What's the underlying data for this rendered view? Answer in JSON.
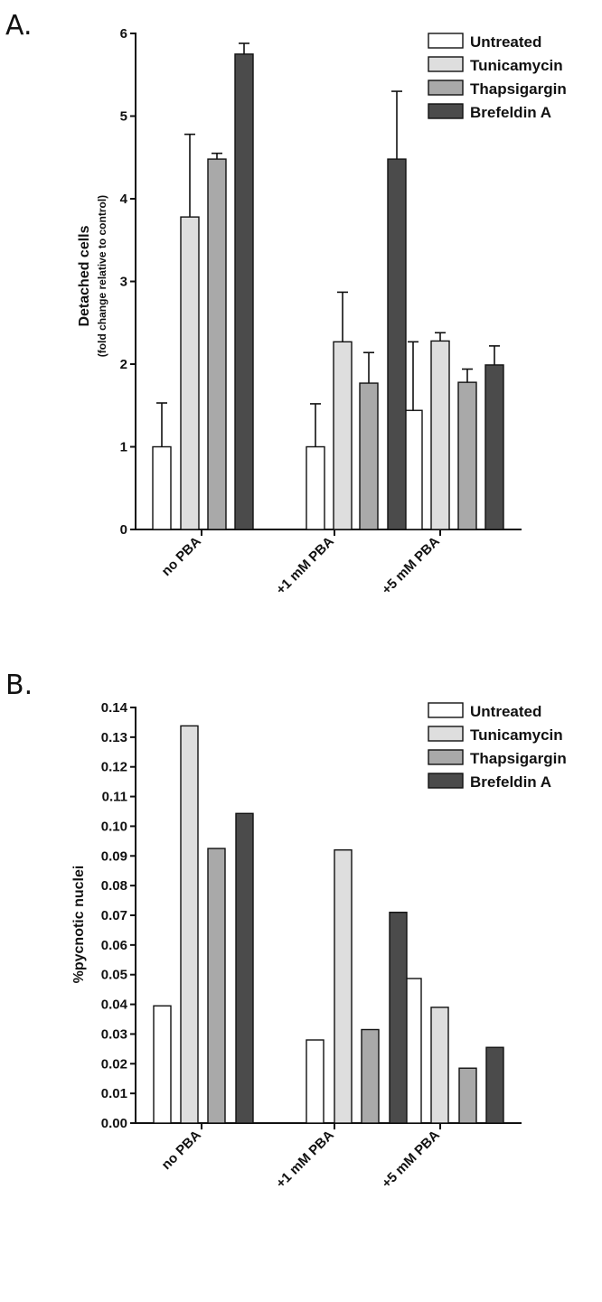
{
  "colors": {
    "Untreated": "#ffffff",
    "Tunicamycin": "#dedede",
    "Thapsigargin": "#a9a9a9",
    "Brefeldin A": "#4b4b4b",
    "axis": "#111111"
  },
  "chart_data": [
    {
      "type": "bar",
      "panel_label": "A.",
      "title": "",
      "categories": [
        "no PBA",
        "+1 mM PBA",
        "+5 mM PBA"
      ],
      "ylabel": "Detached cells",
      "ylabel_sub": "(fold change relative to control)",
      "ylim": [
        0,
        6
      ],
      "yticks": [
        "0",
        "1",
        "2",
        "3",
        "4",
        "5",
        "6"
      ],
      "legend_position": "top-right",
      "error_bars": true,
      "series": [
        {
          "name": "Untreated",
          "values": [
            1.0,
            1.0,
            1.44
          ],
          "errors": [
            0.53,
            0.52,
            0.83
          ]
        },
        {
          "name": "Tunicamycin",
          "values": [
            3.78,
            2.27,
            2.28
          ],
          "errors": [
            1.0,
            0.6,
            0.1
          ]
        },
        {
          "name": "Thapsigargin",
          "values": [
            4.48,
            1.77,
            1.78
          ],
          "errors": [
            0.07,
            0.37,
            0.16
          ]
        },
        {
          "name": "Brefeldin A",
          "values": [
            5.75,
            4.48,
            1.99
          ],
          "errors": [
            0.13,
            0.82,
            0.23
          ]
        }
      ]
    },
    {
      "type": "bar",
      "panel_label": "B.",
      "title": "",
      "categories": [
        "no PBA",
        "+1 mM PBA",
        "+5 mM PBA"
      ],
      "ylabel": "%pycnotic nuclei",
      "ylim": [
        0,
        0.14
      ],
      "yticks": [
        "0.00",
        "0.01",
        "0.02",
        "0.03",
        "0.04",
        "0.05",
        "0.06",
        "0.07",
        "0.08",
        "0.09",
        "0.10",
        "0.11",
        "0.12",
        "0.13",
        "0.14"
      ],
      "legend_position": "top-right",
      "error_bars": false,
      "series": [
        {
          "name": "Untreated",
          "values": [
            0.0395,
            0.028,
            0.0487
          ]
        },
        {
          "name": "Tunicamycin",
          "values": [
            0.1338,
            0.092,
            0.039
          ]
        },
        {
          "name": "Thapsigargin",
          "values": [
            0.0925,
            0.0315,
            0.0185
          ]
        },
        {
          "name": "Brefeldin A",
          "values": [
            0.1043,
            0.071,
            0.0255
          ]
        }
      ]
    }
  ]
}
